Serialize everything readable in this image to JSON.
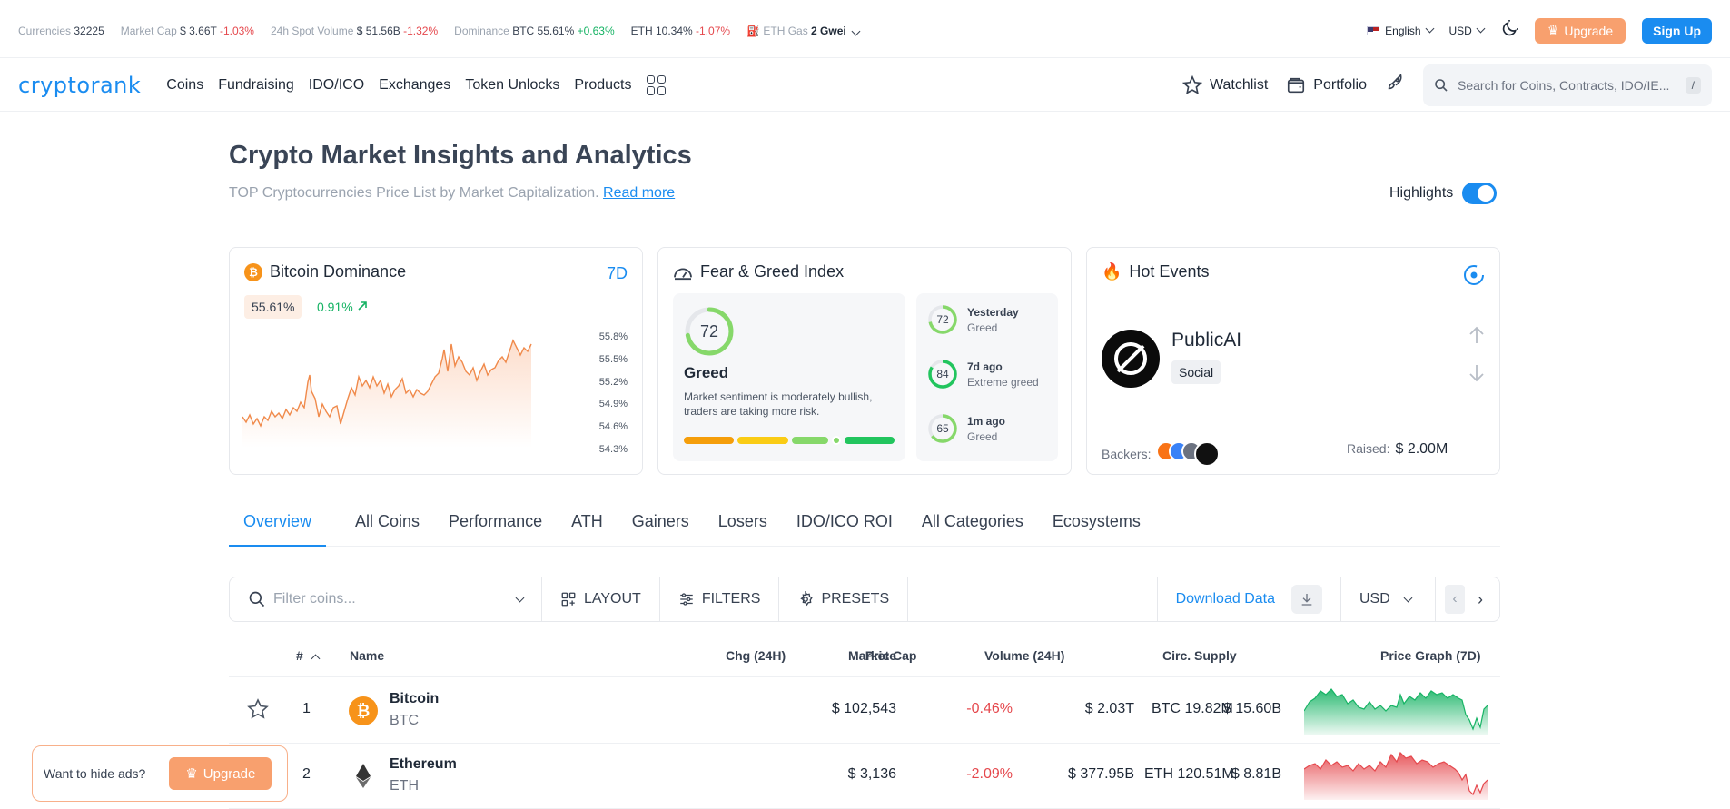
{
  "ticker": {
    "currencies_label": "Currencies",
    "currencies_value": "32225",
    "mcap_label": "Market Cap",
    "mcap_value": "$ 3.66T",
    "mcap_change": "-1.03%",
    "spot_label": "24h Spot Volume",
    "spot_value": "$ 51.56B",
    "spot_change": "-1.32%",
    "dom_label": "Dominance",
    "dom_btc": "BTC 55.61%",
    "dom_btc_change": "+0.63%",
    "dom_eth": "ETH 10.34%",
    "dom_eth_change": "-1.07%",
    "gas_label": "ETH Gas",
    "gas_value": "2 Gwei",
    "language": "English",
    "currency": "USD",
    "upgrade": "Upgrade",
    "signup": "Sign Up"
  },
  "nav": {
    "logo": "cryptorank",
    "links": [
      "Coins",
      "Fundraising",
      "IDO/ICO",
      "Exchanges",
      "Token Unlocks",
      "Products"
    ],
    "watchlist": "Watchlist",
    "portfolio": "Portfolio",
    "search_placeholder": "Search for Coins, Contracts, IDO/IE...",
    "search_kbd": "/"
  },
  "header": {
    "title": "Crypto Market Insights and Analytics",
    "subtitle": "TOP Cryptocurrencies Price List by Market Capitalization.",
    "read_more": "Read more",
    "highlights": "Highlights"
  },
  "dominance": {
    "title": "Bitcoin Dominance",
    "period": "7D",
    "value": "55.61%",
    "change": "0.91%",
    "yticks": [
      "55.8%",
      "55.5%",
      "55.2%",
      "54.9%",
      "54.6%",
      "54.3%"
    ]
  },
  "fear_greed": {
    "title": "Fear & Greed Index",
    "value": "72",
    "label": "Greed",
    "description": "Market sentiment is moderately bullish, traders are taking more risk.",
    "history": [
      {
        "value": "72",
        "when": "Yesterday",
        "label": "Greed"
      },
      {
        "value": "84",
        "when": "7d ago",
        "label": "Extreme greed"
      },
      {
        "value": "65",
        "when": "1m ago",
        "label": "Greed"
      }
    ]
  },
  "hot_events": {
    "title": "Hot Events",
    "name": "PublicAI",
    "tag": "Social",
    "backers_label": "Backers:",
    "raised_label": "Raised:",
    "raised_value": "$ 2.00M"
  },
  "tabs": [
    "Overview",
    "All Coins",
    "Performance",
    "ATH",
    "Gainers",
    "Losers",
    "IDO/ICO ROI",
    "All Categories",
    "Ecosystems"
  ],
  "toolbar": {
    "filter_placeholder": "Filter coins...",
    "layout": "LAYOUT",
    "filters": "FILTERS",
    "presets": "PRESETS",
    "download": "Download Data",
    "currency": "USD"
  },
  "table": {
    "headers": {
      "rank": "#",
      "name": "Name",
      "price": "Price",
      "chg": "Chg (24H)",
      "mcap": "Market Cap",
      "volume": "Volume (24H)",
      "supply": "Circ. Supply",
      "graph": "Price Graph (7D)"
    },
    "rows": [
      {
        "rank": "1",
        "name": "Bitcoin",
        "symbol": "BTC",
        "price": "$ 102,543",
        "chg": "-0.46%",
        "mcap": "$ 2.03T",
        "volume": "$ 15.60B",
        "supply": "BTC 19.82M"
      },
      {
        "rank": "2",
        "name": "Ethereum",
        "symbol": "ETH",
        "price": "$ 3,136",
        "chg": "-2.09%",
        "mcap": "$ 377.95B",
        "volume": "$ 8.81B",
        "supply": "ETH 120.51M"
      }
    ]
  },
  "ad": {
    "text": "Want to hide ads?",
    "button": "Upgrade"
  },
  "colors": {
    "accent": "#1a8cf0",
    "upgrade": "#f8a06e",
    "down": "#e5484d",
    "up": "#16b364"
  }
}
